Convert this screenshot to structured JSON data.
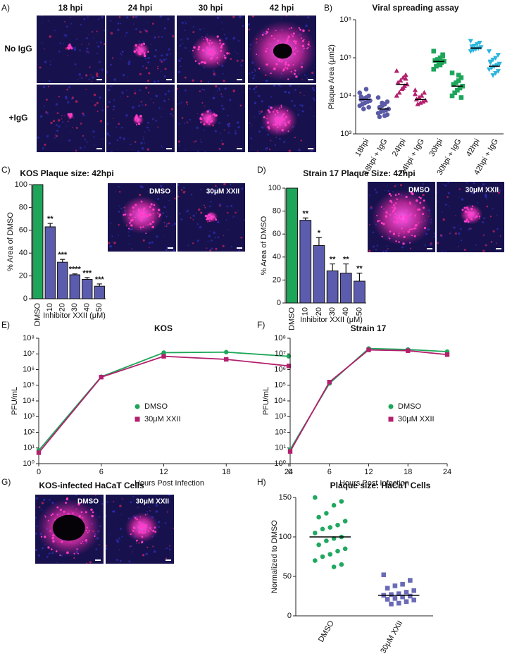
{
  "figure": {
    "panel_labels": [
      "A)",
      "B)",
      "C)",
      "D)",
      "E)",
      "F)",
      "G)",
      "H)"
    ],
    "panel_a": {
      "columns": [
        "18 hpi",
        "24 hpi",
        "30 hpi",
        "42 hpi"
      ],
      "rows": [
        "No IgG",
        "+IgG"
      ]
    },
    "panel_g": {
      "title": "KOS-infected HaCaT Cells",
      "image_labels": [
        "DMSO",
        "30μM XXII"
      ]
    }
  },
  "chart_data": [
    {
      "type": "dot-plot",
      "title": "Viral spreading assay",
      "ylabel": "Plaque Area (μm2)",
      "categories": [
        "18hpi",
        "18hpi + IgG",
        "24hpi",
        "24hpi + IgG",
        "30hpi",
        "30hpi + IgG",
        "42hpi",
        "42hpi + IgG"
      ],
      "colors": [
        "#5a5aa6",
        "#5a5aa6",
        "#b3206d",
        "#b3206d",
        "#1da65a",
        "#1da65a",
        "#2ab5dc",
        "#2ab5dc"
      ],
      "markers": [
        "circle",
        "circle",
        "triangle",
        "triangle",
        "square",
        "square",
        "triangle-down",
        "triangle-down"
      ],
      "values": [
        [
          12000,
          10000,
          9000,
          8500,
          8000,
          7500,
          7000,
          6500,
          6000,
          5500,
          5000,
          15000,
          4500,
          9500
        ],
        [
          9000,
          7000,
          6000,
          5500,
          5000,
          4500,
          4200,
          4000,
          3800,
          3500,
          3200,
          3000,
          6500,
          2800
        ],
        [
          45000,
          35000,
          30000,
          25000,
          22000,
          20000,
          18000,
          15000,
          12000,
          10000,
          28000,
          16000
        ],
        [
          14000,
          12000,
          10000,
          9000,
          8000,
          7500,
          7000,
          6500,
          6000,
          11000
        ],
        [
          150000,
          120000,
          100000,
          90000,
          85000,
          80000,
          75000,
          70000,
          60000,
          50000,
          110000,
          65000
        ],
        [
          40000,
          30000,
          25000,
          22000,
          20000,
          18000,
          16000,
          14000,
          12000,
          10000,
          9000,
          35000
        ],
        [
          280000,
          250000,
          230000,
          210000,
          200000,
          190000,
          180000,
          170000,
          160000,
          150000
        ],
        [
          150000,
          120000,
          100000,
          90000,
          80000,
          70000,
          65000,
          60000,
          55000,
          50000,
          45000,
          40000,
          35000,
          75000
        ]
      ],
      "medians": [
        8000,
        4500,
        20000,
        8000,
        80000,
        18000,
        180000,
        60000
      ],
      "log_scale": true,
      "ylim": [
        1000,
        1000000
      ],
      "yticks": [
        {
          "value": 1000,
          "label": "10³"
        },
        {
          "value": 10000,
          "label": "10⁴"
        },
        {
          "value": 100000,
          "label": "10⁵"
        },
        {
          "value": 1000000,
          "label": "10⁶"
        }
      ]
    },
    {
      "type": "bar",
      "title": "KOS Plaque size: 42hpi",
      "xlabel": "Inhibitor XXII (μM)",
      "ylabel": "% Area of DMSO",
      "categories": [
        "DMSO",
        "10",
        "20",
        "30",
        "40",
        "50"
      ],
      "values": [
        100,
        63,
        32,
        21,
        17,
        11
      ],
      "errors": [
        null,
        3,
        2.5,
        0.8,
        1.5,
        2
      ],
      "significance": [
        null,
        "**",
        "***",
        "****",
        "***",
        "***"
      ],
      "colors": [
        "#1da65a",
        "#5c5cae",
        "#5c5cae",
        "#5c5cae",
        "#5c5cae",
        "#5c5cae"
      ],
      "ylim": [
        0,
        100
      ],
      "yticks": [
        0,
        20,
        40,
        60,
        80,
        100
      ],
      "inset_labels": [
        "DMSO",
        "30μM XXII"
      ]
    },
    {
      "type": "bar",
      "title": "Strain 17 Plaque Size: 42hpi",
      "xlabel": "Inhibitor XXII (μM)",
      "ylabel": "% Area of DMSO",
      "categories": [
        "DMSO",
        "10",
        "20",
        "30",
        "40",
        "50"
      ],
      "values": [
        100,
        72,
        50,
        28,
        26,
        19
      ],
      "errors": [
        null,
        2,
        7,
        6,
        8,
        7
      ],
      "significance": [
        null,
        "**",
        "*",
        "**",
        "**",
        "**"
      ],
      "colors": [
        "#1da65a",
        "#5c5cae",
        "#5c5cae",
        "#5c5cae",
        "#5c5cae",
        "#5c5cae"
      ],
      "ylim": [
        0,
        100
      ],
      "yticks": [
        0,
        20,
        40,
        60,
        80,
        100
      ],
      "inset_labels": [
        "DMSO",
        "30μM XXII"
      ]
    },
    {
      "type": "line",
      "title": "KOS",
      "xlabel": "Hours Post Infection",
      "ylabel": "PFU/mL",
      "x": [
        0,
        6,
        12,
        18,
        24
      ],
      "xlim": [
        0,
        24
      ],
      "xticks": [
        0,
        6,
        12,
        18,
        24
      ],
      "log_scale": true,
      "ylim": [
        1,
        100000000
      ],
      "yticks": [
        {
          "value": 1,
          "label": "10⁰"
        },
        {
          "value": 10,
          "label": "10¹"
        },
        {
          "value": 100,
          "label": "10²"
        },
        {
          "value": 1000,
          "label": "10³"
        },
        {
          "value": 10000,
          "label": "10⁴"
        },
        {
          "value": 100000,
          "label": "10⁵"
        },
        {
          "value": 1000000,
          "label": "10⁶"
        },
        {
          "value": 10000000,
          "label": "10⁷"
        },
        {
          "value": 100000000,
          "label": "10⁸"
        }
      ],
      "legend": "center-right",
      "series": [
        {
          "name": "DMSO",
          "color": "#1da65a",
          "marker": "circle",
          "values": [
            7,
            350000,
            12000000,
            13000000,
            7000000
          ]
        },
        {
          "name": "30μM XXII",
          "color": "#b3206d",
          "marker": "square",
          "values": [
            5,
            330000,
            7000000,
            4500000,
            1700000
          ]
        }
      ]
    },
    {
      "type": "line",
      "title": "Strain 17",
      "xlabel": "Hours Post Infection",
      "ylabel": "PFU/mL",
      "x": [
        0,
        6,
        12,
        18,
        24
      ],
      "xlim": [
        0,
        24
      ],
      "xticks": [
        0,
        6,
        12,
        18,
        24
      ],
      "log_scale": true,
      "ylim": [
        1,
        100000000
      ],
      "yticks": [
        {
          "value": 1,
          "label": "10⁰"
        },
        {
          "value": 10,
          "label": "10¹"
        },
        {
          "value": 100,
          "label": "10²"
        },
        {
          "value": 1000,
          "label": "10³"
        },
        {
          "value": 10000,
          "label": "10⁴"
        },
        {
          "value": 100000,
          "label": "10⁵"
        },
        {
          "value": 1000000,
          "label": "10⁶"
        },
        {
          "value": 10000000,
          "label": "10⁷"
        },
        {
          "value": 100000000,
          "label": "10⁸"
        }
      ],
      "legend": "center-right",
      "series": [
        {
          "name": "DMSO",
          "color": "#1da65a",
          "marker": "circle",
          "values": [
            8,
            130000,
            22000000,
            19000000,
            14000000
          ]
        },
        {
          "name": "30μM XXII",
          "color": "#b3206d",
          "marker": "square",
          "values": [
            6,
            160000,
            18000000,
            16000000,
            9000000
          ]
        }
      ]
    },
    {
      "type": "dot-plot",
      "title": "Plaque size: HaCaT Cells",
      "ylabel": "Normalized to DMSO",
      "categories": [
        "DMSO",
        "30μM XXII"
      ],
      "colors": [
        "#20a860",
        "#6a6ab8"
      ],
      "markers": [
        "circle",
        "square"
      ],
      "values": [
        [
          150,
          145,
          140,
          130,
          125,
          120,
          115,
          112,
          110,
          105,
          100,
          98,
          95,
          90,
          85,
          82,
          78,
          75,
          70,
          65,
          62
        ],
        [
          52,
          45,
          40,
          38,
          35,
          32,
          30,
          28,
          27,
          26,
          25,
          24,
          22,
          21,
          20,
          18,
          16,
          15
        ]
      ],
      "medians": [
        100,
        26
      ],
      "ylim": [
        0,
        150
      ],
      "yticks": [
        0,
        50,
        100,
        150
      ]
    }
  ]
}
